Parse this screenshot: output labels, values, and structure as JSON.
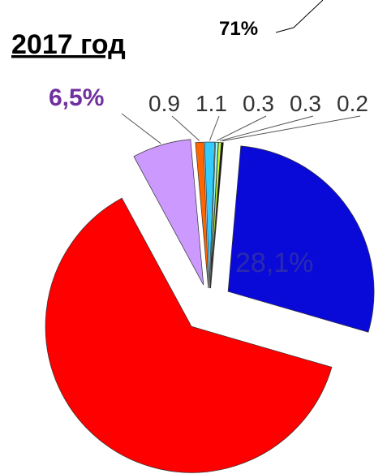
{
  "chart_data": {
    "type": "pie",
    "title": "2017 год",
    "annotation": "71%",
    "values": [
      28.1,
      62.6,
      6.5,
      0.9,
      1.1,
      0.3,
      0.3,
      0.2
    ],
    "value_labels": [
      "28,1%",
      null,
      "6,5%",
      "0.9",
      "1.1",
      "0.3",
      "0.3",
      "0.2"
    ],
    "colors": [
      "#0a0ad8",
      "#ff0000",
      "#cc99ff",
      "#ff6600",
      "#33ccff",
      "#99ffff",
      "#ccff33",
      "#111111"
    ]
  }
}
